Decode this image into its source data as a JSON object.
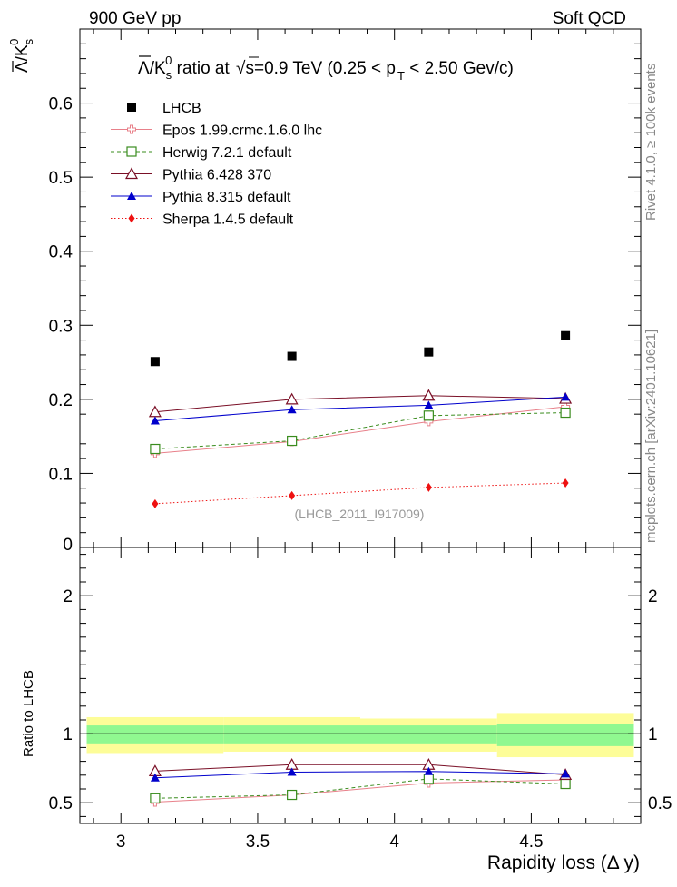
{
  "header": {
    "left": "900 GeV pp",
    "right": "Soft QCD"
  },
  "side_labels": {
    "rivet": "Rivet 4.1.0, ≥ 100k events",
    "mcplots": "mcplots.cern.ch [arXiv:2401.10621]"
  },
  "chart_data": [
    {
      "type": "scatter",
      "title": "Λ̄/K⁰s ratio at √s=0.9 TeV (0.25 < pT < 2.50 Gev/c)",
      "title_parts": {
        "ratio": "/K",
        "ratio_sub": "s",
        "ratio_sup": "0",
        "mid": " ratio at ",
        "sqrt": "s=0.9 TeV (0.25 < p",
        "pt_sub": "T",
        "tail": " < 2.50 Gev/c)"
      },
      "ylabel": "Λ̄/K⁰s",
      "ylabel_parts": {
        "bar": "Λ",
        "mid": "/K",
        "sub": "s",
        "sup": "0"
      },
      "watermark": "(LHCB_2011_I917009)",
      "xlim": [
        2.85,
        4.9
      ],
      "ylim": [
        0,
        0.7
      ],
      "yticks": [
        "0.1",
        "0.2",
        "0.3",
        "0.4",
        "0.5",
        "0.6"
      ],
      "ytick_values": [
        0.1,
        0.2,
        0.3,
        0.4,
        0.5,
        0.6
      ],
      "y_zero_label": "0",
      "x": [
        3.125,
        3.625,
        4.125,
        4.625
      ],
      "series": [
        {
          "name": "LHCB",
          "marker": "square-filled",
          "color": "#000000",
          "line": "none",
          "values": [
            0.251,
            0.258,
            0.264,
            0.286
          ]
        },
        {
          "name": "Epos 1.99.crmc.1.6.0 lhc",
          "marker": "cross-open",
          "color": "#e8808a",
          "line": "solid",
          "values": [
            0.127,
            0.143,
            0.17,
            0.19
          ]
        },
        {
          "name": "Herwig 7.2.1 default",
          "marker": "square-open",
          "color": "#3a8c1e",
          "line": "dashed",
          "values": [
            0.133,
            0.144,
            0.178,
            0.182
          ]
        },
        {
          "name": "Pythia 6.428 370",
          "marker": "triangle-open",
          "color": "#7a0f26",
          "line": "solid",
          "values": [
            0.183,
            0.2,
            0.205,
            0.201
          ]
        },
        {
          "name": "Pythia 8.315 default",
          "marker": "triangle-filled",
          "color": "#0000cc",
          "line": "solid",
          "values": [
            0.171,
            0.186,
            0.192,
            0.203
          ]
        },
        {
          "name": "Sherpa 1.4.5 default",
          "marker": "diamond-filled",
          "color": "#ee1111",
          "line": "dotted",
          "values": [
            0.059,
            0.07,
            0.081,
            0.087
          ]
        }
      ]
    },
    {
      "type": "scatter",
      "ylabel": "Ratio to LHCB",
      "xlabel": "Rapidity loss (Δ y)",
      "xlim": [
        2.85,
        4.9
      ],
      "ylim": [
        0.35,
        2.35
      ],
      "xticks": [
        "3",
        "3.5",
        "4",
        "4.5"
      ],
      "xtick_values": [
        3,
        3.5,
        4,
        4.5
      ],
      "yticks": [
        "0.5",
        "1",
        "2"
      ],
      "ytick_values": [
        0.5,
        1,
        2
      ],
      "bands": [
        {
          "x0": 2.875,
          "x1": 3.375,
          "inner": [
            0.93,
            1.06
          ],
          "outer": [
            0.86,
            1.12
          ]
        },
        {
          "x0": 3.375,
          "x1": 3.875,
          "inner": [
            0.93,
            1.06
          ],
          "outer": [
            0.87,
            1.12
          ]
        },
        {
          "x0": 3.875,
          "x1": 4.375,
          "inner": [
            0.93,
            1.06
          ],
          "outer": [
            0.87,
            1.11
          ]
        },
        {
          "x0": 4.375,
          "x1": 4.875,
          "inner": [
            0.91,
            1.07
          ],
          "outer": [
            0.83,
            1.15
          ]
        }
      ],
      "band_colors": {
        "inner": "#90f890",
        "outer": "#fdfd98"
      },
      "x": [
        3.125,
        3.625,
        4.125,
        4.625
      ],
      "series": [
        {
          "name": "Epos 1.99.crmc.1.6.0 lhc",
          "marker": "cross-open",
          "color": "#e8808a",
          "line": "solid",
          "values": [
            0.505,
            0.556,
            0.643,
            0.666
          ]
        },
        {
          "name": "Herwig 7.2.1 default",
          "marker": "square-open",
          "color": "#3a8c1e",
          "line": "dashed",
          "values": [
            0.532,
            0.557,
            0.673,
            0.636
          ]
        },
        {
          "name": "Pythia 6.428 370",
          "marker": "triangle-open",
          "color": "#7a0f26",
          "line": "solid",
          "values": [
            0.729,
            0.776,
            0.776,
            0.703
          ]
        },
        {
          "name": "Pythia 8.315 default",
          "marker": "triangle-filled",
          "color": "#0000cc",
          "line": "solid",
          "values": [
            0.681,
            0.722,
            0.727,
            0.709
          ]
        }
      ]
    }
  ]
}
